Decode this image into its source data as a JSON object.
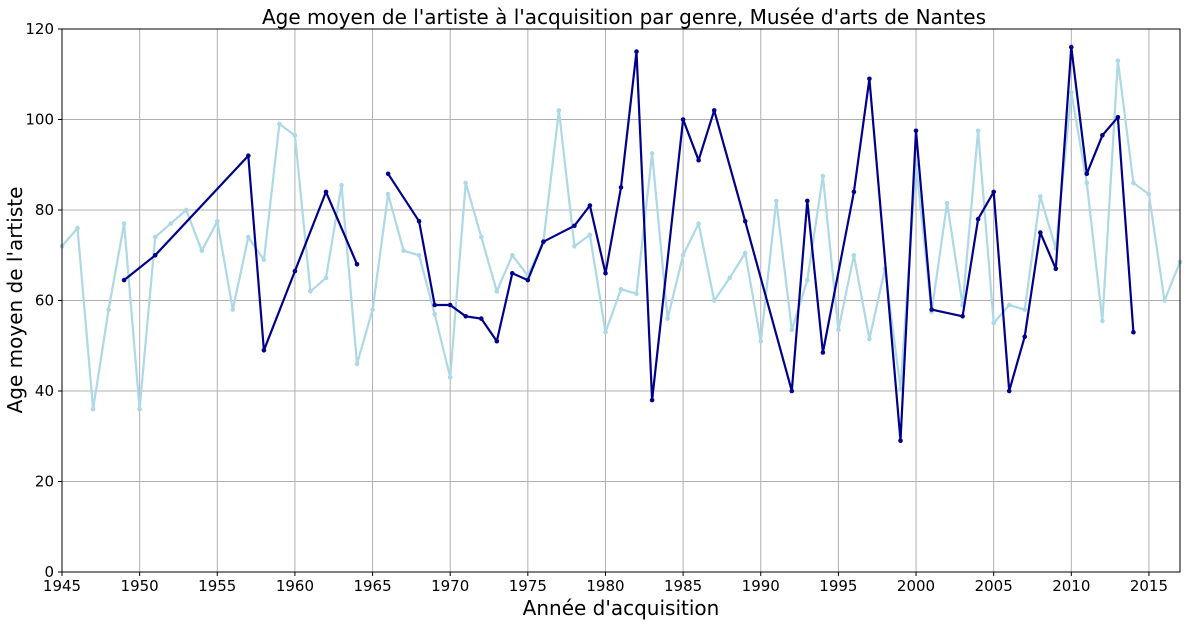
{
  "chart_data": {
    "type": "line",
    "title": "Age moyen de l'artiste à l'acquisition par genre, Musée d'arts de Nantes",
    "xlabel": "Année d'acquisition",
    "ylabel": "Age moyen de l'artiste",
    "xlim": [
      1945,
      2017
    ],
    "ylim": [
      0,
      120
    ],
    "xticks": [
      1945,
      1950,
      1955,
      1960,
      1965,
      1970,
      1975,
      1980,
      1985,
      1990,
      1995,
      2000,
      2005,
      2010,
      2015
    ],
    "yticks": [
      0,
      20,
      40,
      60,
      80,
      100,
      120
    ],
    "grid": true,
    "series": [
      {
        "color": "#add8e6",
        "x": [
          1945,
          1946,
          1947,
          1948,
          1949,
          1950,
          1951,
          1952,
          1953,
          1954,
          1955,
          1956,
          1957,
          1958,
          1959,
          1960,
          1961,
          1962,
          1963,
          1964,
          1965,
          1966,
          1967,
          1968,
          1969,
          1970,
          1971,
          1972,
          1973,
          1974,
          1975,
          1976,
          1977,
          1978,
          1979,
          1980,
          1981,
          1982,
          1983,
          1984,
          1985,
          1986,
          1987,
          1988,
          1989,
          1990,
          1991,
          1992,
          1993,
          1994,
          1995,
          1996,
          1997,
          1998,
          1999,
          2000,
          2001,
          2002,
          2003,
          2004,
          2005,
          2006,
          2007,
          2008,
          2009,
          2010,
          2011,
          2012,
          2013,
          2014,
          2015,
          2016,
          2017
        ],
        "y": [
          72,
          76,
          36,
          58,
          77,
          36,
          74,
          77,
          80,
          71,
          77.5,
          58,
          74,
          69,
          99,
          96.5,
          62,
          65,
          85.5,
          46,
          58,
          83.5,
          71,
          70,
          57,
          43,
          86,
          74,
          62,
          70,
          65.5,
          73,
          102,
          72,
          74.5,
          53,
          62.5,
          61.5,
          92.5,
          56,
          70,
          77,
          60,
          65,
          70.5,
          51,
          82,
          53.5,
          64.5,
          87.5,
          53.5,
          70,
          51.5,
          67,
          40.5,
          90,
          57.5,
          81.5,
          59,
          97.5,
          55,
          59,
          58,
          83,
          71.5,
          106,
          86,
          55.5,
          113,
          86,
          83.5,
          60,
          68.5
        ]
      },
      {
        "color": "#00008b",
        "segments": [
          {
            "x": [
              1949,
              1951,
              1957,
              1958,
              1960,
              1962,
              1964
            ],
            "y": [
              64.5,
              70,
              92,
              49,
              66.5,
              84,
              68
            ]
          },
          {
            "x": [
              1966,
              1968,
              1969,
              1970,
              1971,
              1972,
              1973,
              1974,
              1975,
              1976,
              1978,
              1979,
              1980,
              1981,
              1982,
              1983,
              1985,
              1986,
              1987,
              1989,
              1992,
              1993,
              1994,
              1996,
              1997,
              1999,
              2000,
              2001,
              2003,
              2004,
              2005,
              2006,
              2007,
              2008,
              2009,
              2010,
              2011,
              2012,
              2013,
              2014
            ],
            "y": [
              88,
              77.5,
              59,
              59,
              56.5,
              56,
              51,
              66,
              64.5,
              73,
              76.5,
              81,
              66,
              85,
              115,
              38,
              100,
              91,
              102,
              77.5,
              40,
              82,
              48.5,
              84,
              109,
              29,
              97.5,
              58,
              56.5,
              78,
              84,
              40,
              52,
              75,
              67,
              116,
              88,
              96.5,
              100.5,
              53
            ]
          }
        ]
      }
    ]
  }
}
